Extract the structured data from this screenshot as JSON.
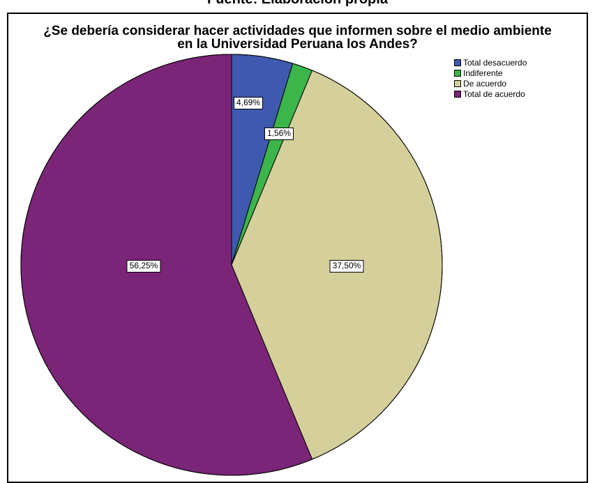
{
  "page": {
    "top_title_cut": "Fuente: Elaboración propia"
  },
  "chart_data": {
    "type": "pie",
    "title_line1": "¿Se debería considerar hacer actividades que informen sobre el medio ambiente",
    "title_line2": "en la Universidad Peruana los Andes?",
    "slices": [
      {
        "label": "Total desacuerdo",
        "value": 4.69,
        "display": "4,69%",
        "color": "#3E59AE"
      },
      {
        "label": "Indiferente",
        "value": 1.56,
        "display": "1,56%",
        "color": "#3CB54A"
      },
      {
        "label": "De acuerdo",
        "value": 37.5,
        "display": "37,50%",
        "color": "#D5D09B"
      },
      {
        "label": "Total de acuerdo",
        "value": 56.25,
        "display": "56,25%",
        "color": "#7A2577"
      }
    ],
    "start_angle": "12 o'clock",
    "direction": "clockwise",
    "legend_position": "top-right"
  }
}
